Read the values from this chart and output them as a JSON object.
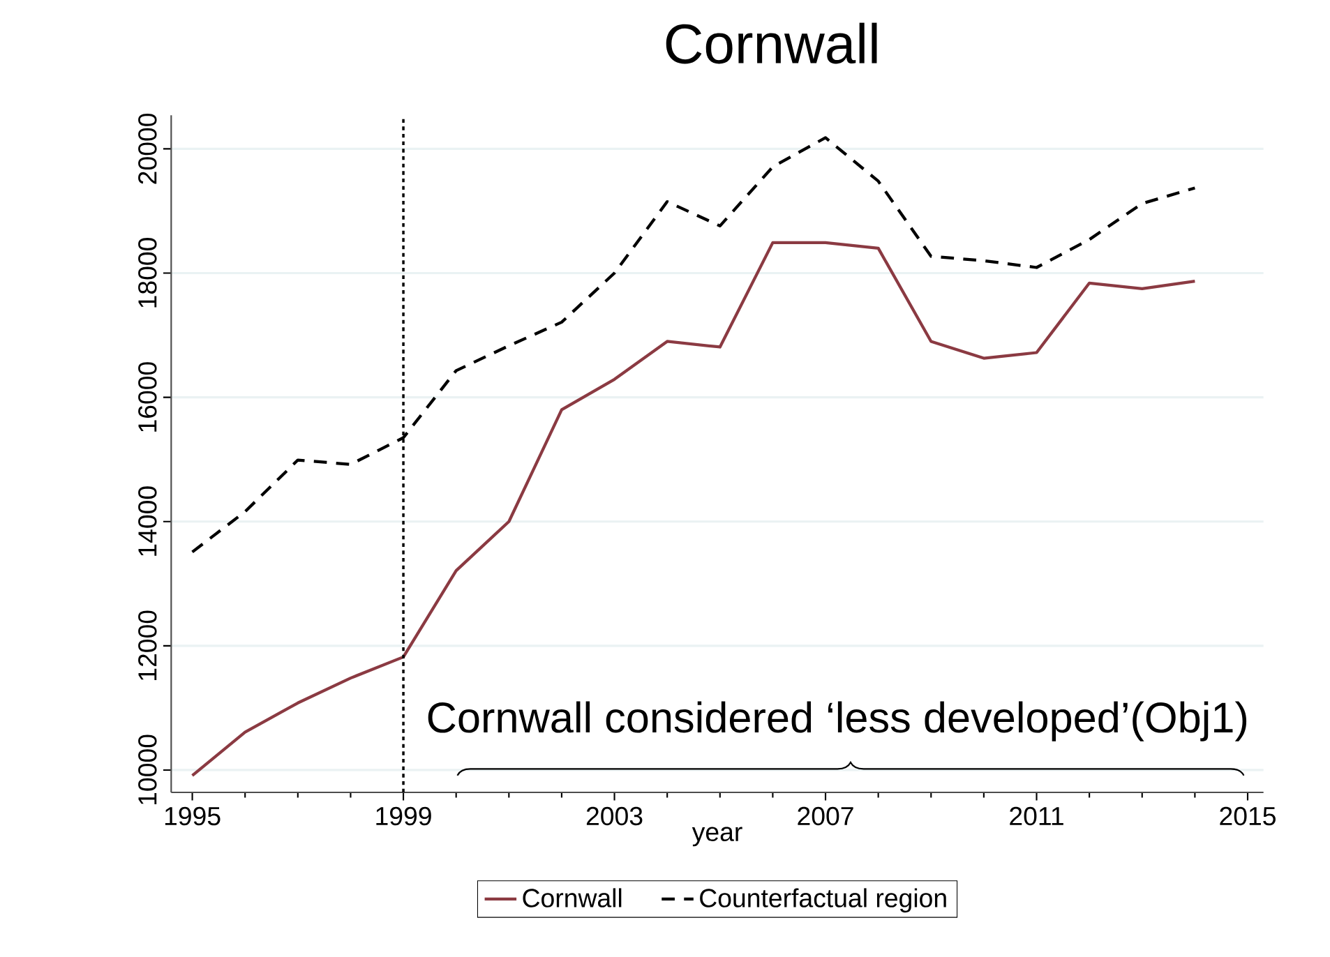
{
  "chart_data": {
    "type": "line",
    "title": "Cornwall",
    "xlabel": "year",
    "x": [
      1995,
      1996,
      1997,
      1998,
      1999,
      2000,
      2001,
      2002,
      2003,
      2004,
      2005,
      2006,
      2007,
      2008,
      2009,
      2010,
      2011,
      2012,
      2013,
      2014
    ],
    "series": [
      {
        "name": "Cornwall",
        "color": "#8b3a42",
        "line_style": "solid",
        "values": [
          9910,
          10610,
          11080,
          11480,
          11820,
          13210,
          14000,
          15800,
          16290,
          16900,
          16810,
          18490,
          18490,
          18400,
          16900,
          16630,
          16720,
          17840,
          17750,
          17870
        ]
      },
      {
        "name": "Counterfactual region",
        "color": "#000000",
        "line_style": "dashed",
        "values": [
          13510,
          14160,
          14990,
          14920,
          15350,
          16430,
          16830,
          17210,
          18000,
          19150,
          18760,
          19710,
          20180,
          19480,
          18270,
          18200,
          18090,
          18540,
          19120,
          19370
        ]
      }
    ],
    "xlim": [
      1994.6,
      2015.3
    ],
    "ylim": [
      9640,
      20540
    ],
    "xticks": [
      1995,
      1999,
      2003,
      2007,
      2011,
      2015
    ],
    "yticks": [
      10000,
      12000,
      14000,
      16000,
      18000,
      20000
    ],
    "grid": "y",
    "legend": "bottom",
    "marker": "none",
    "ref_lines": [
      {
        "axis": "x",
        "value": 1999,
        "line_style": "dotted",
        "color": "#000000"
      }
    ],
    "annotations": [
      "Cornwall considered ‘less developed’(Obj1)"
    ]
  }
}
